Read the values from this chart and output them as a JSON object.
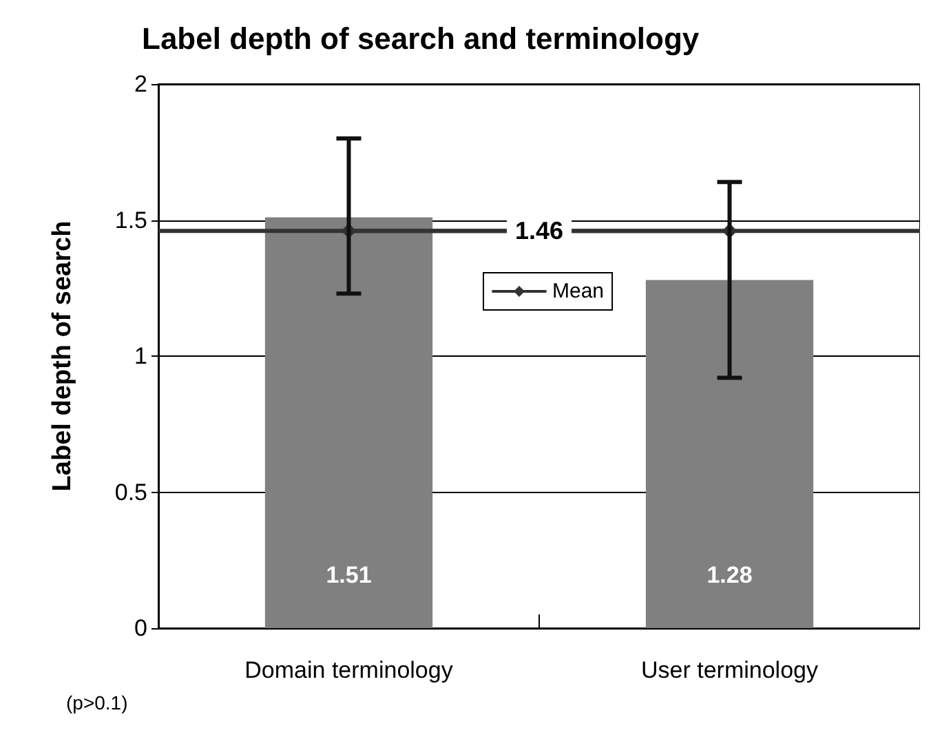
{
  "chart_data": {
    "type": "bar",
    "title": "Label depth of search and terminology",
    "ylabel": "Label depth of search",
    "categories": [
      "Domain terminology",
      "User terminology"
    ],
    "series": [
      {
        "color": "#808080",
        "values": [
          1.51,
          1.28
        ],
        "value_labels": [
          "1.51",
          "1.28"
        ]
      },
      {
        "type": "line",
        "name": "Mean",
        "color": "#333333",
        "values": [
          1.46,
          1.46
        ],
        "errors": [
          [
            1.23,
            1.8
          ],
          [
            0.92,
            1.64
          ]
        ],
        "marker": "diamond"
      }
    ],
    "ylim": [
      0,
      2
    ],
    "yticks": [
      0,
      0.5,
      1,
      1.5,
      2
    ],
    "grid": "y",
    "legend": "center",
    "ref_lines": [
      {
        "axis": "y",
        "value": 1.46,
        "label": "1.46",
        "color": "#333333"
      }
    ],
    "annotations": [
      "(p>0.1)"
    ]
  }
}
